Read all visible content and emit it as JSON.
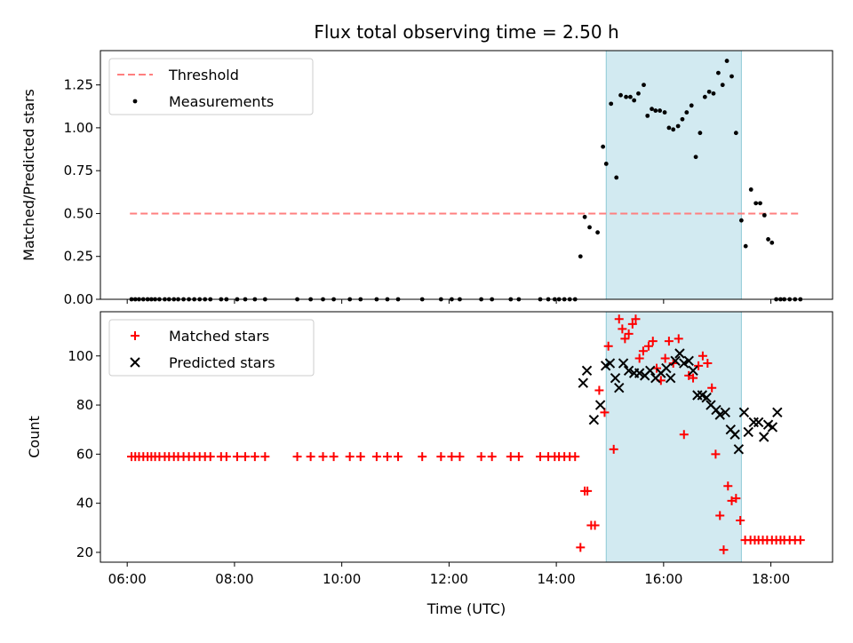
{
  "figure_title": "Flux total observing time = 2.50 h",
  "xlabel": "Time (UTC)",
  "xticks": [
    "06:00",
    "08:00",
    "10:00",
    "12:00",
    "14:00",
    "16:00",
    "18:00"
  ],
  "colors": {
    "threshold": "#ff7f7f",
    "measurements": "#000000",
    "matched": "#ff0000",
    "predicted": "#000000",
    "highlight": "#add8e6"
  },
  "chart_data": [
    {
      "type": "scatter",
      "xlabel": "",
      "ylabel": "Matched/Predicted stars",
      "ylim": [
        0,
        1.45
      ],
      "yticks": [
        "0.00",
        "0.25",
        "0.50",
        "0.75",
        "1.00",
        "1.25"
      ],
      "x_unit": "hours UTC",
      "xlim": [
        5.5,
        19.15
      ],
      "highlight_span": [
        14.93,
        17.45
      ],
      "legend": [
        "Threshold",
        "Measurements"
      ],
      "legend_position": "top-left",
      "threshold": {
        "name": "Threshold",
        "x": [
          6.05,
          18.55
        ],
        "y": 0.5
      },
      "series": [
        {
          "name": "Measurements",
          "marker": "dot",
          "x": [
            6.08,
            6.15,
            6.22,
            6.3,
            6.38,
            6.45,
            6.52,
            6.6,
            6.7,
            6.78,
            6.87,
            6.95,
            7.05,
            7.15,
            7.25,
            7.35,
            7.45,
            7.55,
            7.75,
            7.85,
            8.05,
            8.2,
            8.38,
            8.57,
            9.17,
            9.42,
            9.65,
            9.85,
            10.15,
            10.35,
            10.65,
            10.85,
            11.05,
            11.5,
            11.85,
            12.05,
            12.2,
            12.6,
            12.8,
            13.15,
            13.3,
            13.7,
            13.85,
            13.97,
            14.05,
            14.15,
            14.25,
            14.35,
            14.45,
            14.53,
            14.62,
            14.77,
            14.87,
            14.93,
            15.02,
            15.12,
            15.2,
            15.3,
            15.38,
            15.45,
            15.53,
            15.63,
            15.7,
            15.78,
            15.85,
            15.93,
            16.02,
            16.1,
            16.18,
            16.27,
            16.35,
            16.43,
            16.52,
            16.6,
            16.68,
            16.77,
            16.85,
            16.93,
            17.02,
            17.1,
            17.18,
            17.27,
            17.35,
            17.45,
            17.53,
            17.63,
            17.72,
            17.8,
            17.88,
            17.95,
            18.02,
            18.1,
            18.18,
            18.25,
            18.35,
            18.45,
            18.55
          ],
          "y": [
            0,
            0,
            0,
            0,
            0,
            0,
            0,
            0,
            0,
            0,
            0,
            0,
            0,
            0,
            0,
            0,
            0,
            0,
            0,
            0,
            0,
            0,
            0,
            0,
            0,
            0,
            0,
            0,
            0,
            0,
            0,
            0,
            0,
            0,
            0,
            0,
            0,
            0,
            0,
            0,
            0,
            0,
            0,
            0,
            0,
            0,
            0,
            0,
            0.25,
            0.48,
            0.42,
            0.39,
            0.89,
            0.79,
            1.14,
            0.71,
            1.19,
            1.18,
            1.18,
            1.16,
            1.2,
            1.25,
            1.07,
            1.11,
            1.1,
            1.1,
            1.09,
            1.0,
            0.99,
            1.01,
            1.05,
            1.09,
            1.13,
            0.83,
            0.97,
            1.18,
            1.21,
            1.2,
            1.32,
            1.25,
            1.39,
            1.3,
            0.97,
            0.46,
            0.31,
            0.64,
            0.56,
            0.56,
            0.49,
            0.35,
            0.33,
            0,
            0,
            0,
            0,
            0,
            0
          ]
        }
      ]
    },
    {
      "type": "scatter",
      "xlabel": "Time (UTC)",
      "ylabel": "Count",
      "ylim": [
        16,
        118
      ],
      "yticks": [
        "20",
        "40",
        "60",
        "80",
        "100"
      ],
      "x_unit": "hours UTC",
      "xlim": [
        5.5,
        19.15
      ],
      "highlight_span": [
        14.93,
        17.45
      ],
      "legend": [
        "Matched stars",
        "Predicted stars"
      ],
      "legend_position": "top-left",
      "series": [
        {
          "name": "Matched stars",
          "marker": "plus",
          "x": [
            6.08,
            6.15,
            6.22,
            6.3,
            6.38,
            6.45,
            6.52,
            6.6,
            6.7,
            6.78,
            6.87,
            6.95,
            7.05,
            7.15,
            7.25,
            7.35,
            7.45,
            7.55,
            7.75,
            7.85,
            8.05,
            8.2,
            8.38,
            8.57,
            9.17,
            9.42,
            9.65,
            9.85,
            10.15,
            10.35,
            10.65,
            10.85,
            11.05,
            11.5,
            11.85,
            12.05,
            12.2,
            12.6,
            12.8,
            13.15,
            13.3,
            13.7,
            13.85,
            13.97,
            14.05,
            14.15,
            14.25,
            14.35,
            14.45,
            14.53,
            14.58,
            14.65,
            14.72,
            14.8,
            14.9,
            14.97,
            15.07,
            15.17,
            15.23,
            15.28,
            15.35,
            15.42,
            15.48,
            15.55,
            15.62,
            15.72,
            15.8,
            15.87,
            15.95,
            16.03,
            16.1,
            16.18,
            16.28,
            16.38,
            16.47,
            16.55,
            16.65,
            16.73,
            16.82,
            16.9,
            16.97,
            17.05,
            17.12,
            17.2,
            17.27,
            17.35,
            17.43,
            17.52,
            17.62,
            17.7,
            17.77,
            17.85,
            17.93,
            18.02,
            18.1,
            18.18,
            18.25,
            18.35,
            18.45,
            18.55
          ],
          "y": [
            59,
            59,
            59,
            59,
            59,
            59,
            59,
            59,
            59,
            59,
            59,
            59,
            59,
            59,
            59,
            59,
            59,
            59,
            59,
            59,
            59,
            59,
            59,
            59,
            59,
            59,
            59,
            59,
            59,
            59,
            59,
            59,
            59,
            59,
            59,
            59,
            59,
            59,
            59,
            59,
            59,
            59,
            59,
            59,
            59,
            59,
            59,
            59,
            22,
            45,
            45,
            31,
            31,
            86,
            77,
            104,
            62,
            115,
            111,
            107,
            109,
            113,
            115,
            99,
            102,
            104,
            106,
            95,
            90,
            99,
            106,
            97,
            107,
            68,
            92,
            91,
            96,
            100,
            97,
            87,
            60,
            35,
            21,
            47,
            41,
            42,
            33,
            25,
            25,
            25,
            25,
            25,
            25,
            25,
            25,
            25,
            25,
            25,
            25,
            25
          ]
        },
        {
          "name": "Predicted stars",
          "marker": "cross",
          "x": [
            14.5,
            14.57,
            14.7,
            14.82,
            14.92,
            15.0,
            15.1,
            15.17,
            15.25,
            15.35,
            15.45,
            15.55,
            15.65,
            15.75,
            15.85,
            15.95,
            16.05,
            16.13,
            16.22,
            16.3,
            16.38,
            16.47,
            16.55,
            16.63,
            16.72,
            16.8,
            16.88,
            16.98,
            17.05,
            17.15,
            17.25,
            17.33,
            17.4,
            17.5,
            17.58,
            17.68,
            17.77,
            17.87,
            17.95,
            18.03,
            18.12
          ],
          "y": [
            89,
            94,
            74,
            80,
            96,
            97,
            91,
            87,
            97,
            94,
            93,
            93,
            92,
            94,
            91,
            93,
            95,
            91,
            98,
            101,
            97,
            98,
            94,
            84,
            84,
            83,
            80,
            78,
            76,
            77,
            70,
            68,
            62,
            77,
            69,
            73,
            73,
            67,
            72,
            71,
            77
          ]
        }
      ]
    }
  ]
}
